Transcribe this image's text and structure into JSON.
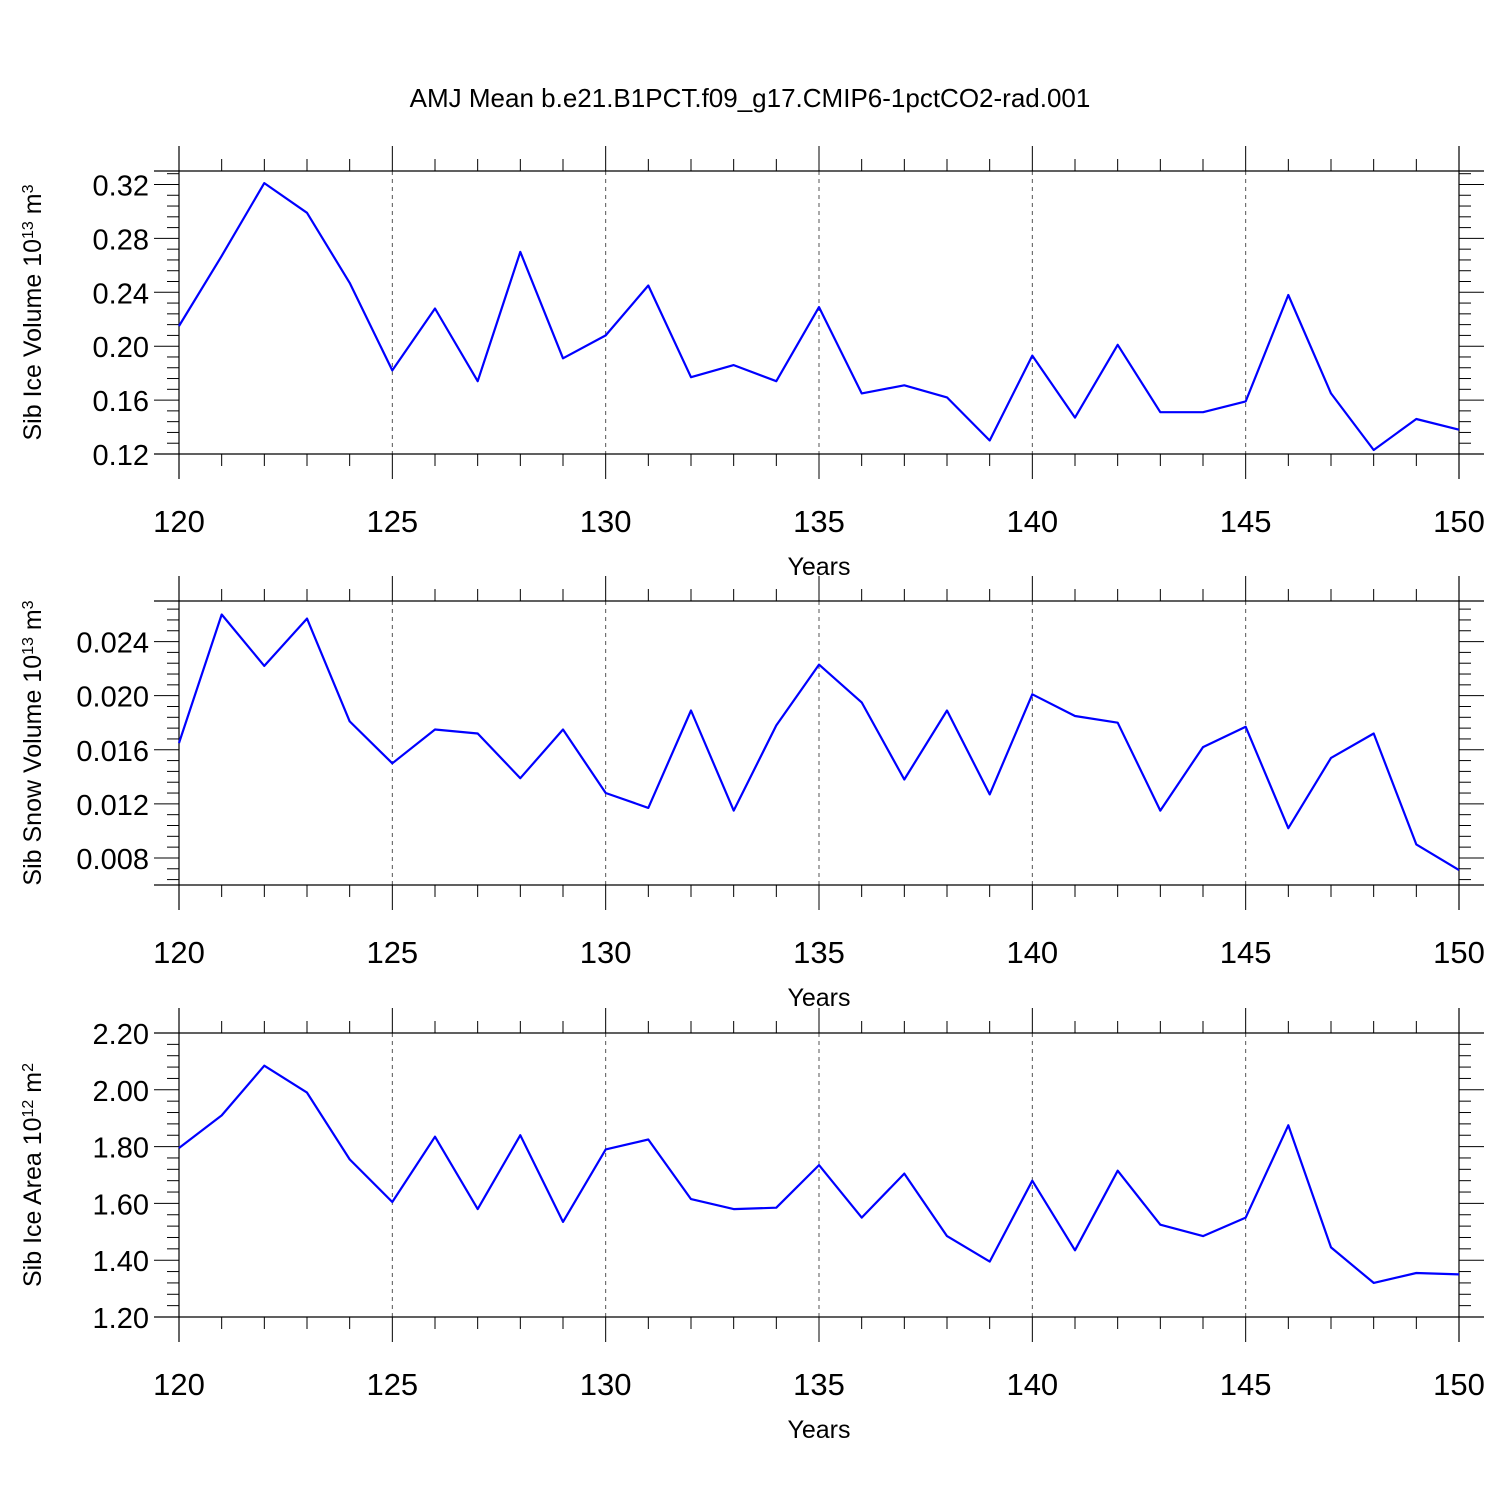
{
  "title": "AMJ Mean b.e21.B1PCT.f09_g17.CMIP6-1pctCO2-rad.001",
  "colors": {
    "line": "#0000ff",
    "axis": "#000000",
    "grid": "#555555"
  },
  "chart_data": [
    {
      "type": "line",
      "xlabel": "Years",
      "ylabel": {
        "text": "Sib Ice Volume 10",
        "exp": "13",
        "unit": " m",
        "unit_exp": "3"
      },
      "xlim": [
        120,
        150
      ],
      "ylim": [
        0.12,
        0.33
      ],
      "y_ticks": [
        0.12,
        0.16,
        0.2,
        0.24,
        0.28,
        0.32
      ],
      "y_tick_labels": [
        "0.12",
        "0.16",
        "0.20",
        "0.24",
        "0.28",
        "0.32"
      ],
      "x_ticks": [
        120,
        125,
        130,
        135,
        140,
        145,
        150
      ],
      "x_tick_labels": [
        "120",
        "125",
        "130",
        "135",
        "140",
        "145",
        "150"
      ],
      "grid": "vertical dashed at major x ticks",
      "x": [
        120,
        121,
        122,
        123,
        124,
        125,
        126,
        127,
        128,
        129,
        130,
        131,
        132,
        133,
        134,
        135,
        136,
        137,
        138,
        139,
        140,
        141,
        142,
        143,
        144,
        145,
        146,
        147,
        148,
        149,
        150
      ],
      "series": [
        {
          "values": [
            0.215,
            0.267,
            0.321,
            0.299,
            0.247,
            0.182,
            0.228,
            0.174,
            0.27,
            0.191,
            0.208,
            0.245,
            0.177,
            0.186,
            0.174,
            0.229,
            0.165,
            0.171,
            0.162,
            0.13,
            0.193,
            0.147,
            0.201,
            0.151,
            0.151,
            0.159,
            0.238,
            0.165,
            0.123,
            0.146,
            0.138
          ]
        }
      ]
    },
    {
      "type": "line",
      "xlabel": "Years",
      "ylabel": {
        "text": "Sib Snow Volume 10",
        "exp": "13",
        "unit": " m",
        "unit_exp": "3"
      },
      "xlim": [
        120,
        150
      ],
      "ylim": [
        0.006,
        0.027
      ],
      "y_ticks": [
        0.008,
        0.012,
        0.016,
        0.02,
        0.024
      ],
      "y_tick_labels": [
        "0.008",
        "0.012",
        "0.016",
        "0.020",
        "0.024"
      ],
      "x_ticks": [
        120,
        125,
        130,
        135,
        140,
        145,
        150
      ],
      "x_tick_labels": [
        "120",
        "125",
        "130",
        "135",
        "140",
        "145",
        "150"
      ],
      "grid": "vertical dashed at major x ticks",
      "x": [
        120,
        121,
        122,
        123,
        124,
        125,
        126,
        127,
        128,
        129,
        130,
        131,
        132,
        133,
        134,
        135,
        136,
        137,
        138,
        139,
        140,
        141,
        142,
        143,
        144,
        145,
        146,
        147,
        148,
        149,
        150
      ],
      "series": [
        {
          "values": [
            0.0165,
            0.026,
            0.0222,
            0.0257,
            0.0181,
            0.015,
            0.0175,
            0.0172,
            0.0139,
            0.0175,
            0.0128,
            0.0117,
            0.0189,
            0.0115,
            0.0178,
            0.0223,
            0.0195,
            0.0138,
            0.0189,
            0.0127,
            0.0201,
            0.0185,
            0.018,
            0.0115,
            0.0162,
            0.0177,
            0.0102,
            0.0154,
            0.0172,
            0.009,
            0.0071
          ]
        }
      ]
    },
    {
      "type": "line",
      "xlabel": "Years",
      "ylabel": {
        "text": "Sib Ice Area 10",
        "exp": "12",
        "unit": " m",
        "unit_exp": "2"
      },
      "xlim": [
        120,
        150
      ],
      "ylim": [
        1.2,
        2.2
      ],
      "y_ticks": [
        1.2,
        1.4,
        1.6,
        1.8,
        2.0,
        2.2
      ],
      "y_tick_labels": [
        "1.20",
        "1.40",
        "1.60",
        "1.80",
        "2.00",
        "2.20"
      ],
      "x_ticks": [
        120,
        125,
        130,
        135,
        140,
        145,
        150
      ],
      "x_tick_labels": [
        "120",
        "125",
        "130",
        "135",
        "140",
        "145",
        "150"
      ],
      "grid": "vertical dashed at major x ticks",
      "x": [
        120,
        121,
        122,
        123,
        124,
        125,
        126,
        127,
        128,
        129,
        130,
        131,
        132,
        133,
        134,
        135,
        136,
        137,
        138,
        139,
        140,
        141,
        142,
        143,
        144,
        145,
        146,
        147,
        148,
        149,
        150
      ],
      "series": [
        {
          "values": [
            1.795,
            1.91,
            2.085,
            1.99,
            1.755,
            1.605,
            1.835,
            1.58,
            1.84,
            1.535,
            1.79,
            1.825,
            1.615,
            1.58,
            1.585,
            1.735,
            1.55,
            1.705,
            1.485,
            1.395,
            1.68,
            1.435,
            1.715,
            1.525,
            1.485,
            1.55,
            1.875,
            1.445,
            1.32,
            1.355,
            1.35
          ]
        }
      ]
    }
  ]
}
